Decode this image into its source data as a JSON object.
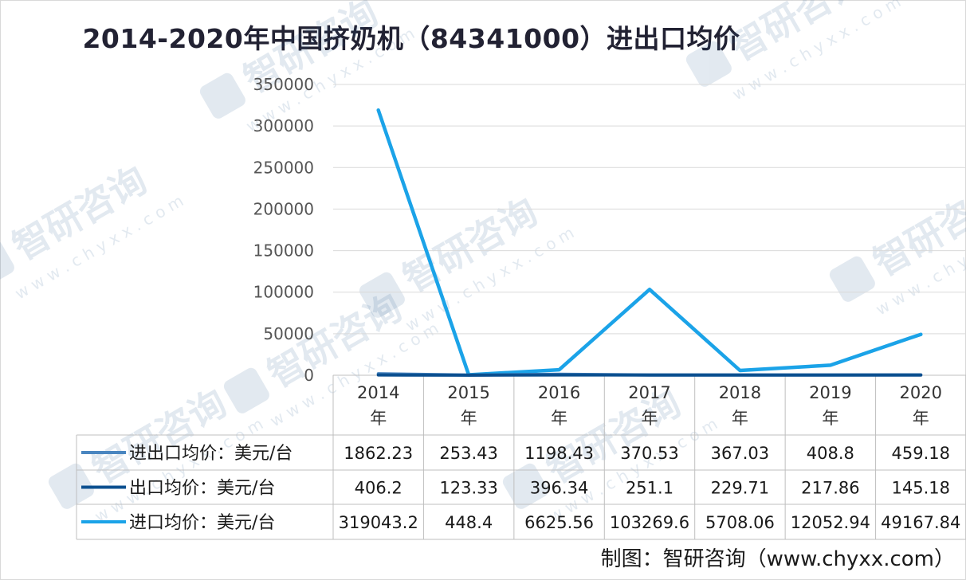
{
  "title": "2014-2020年中国挤奶机（84341000）进出口均价",
  "credit": "制图：智研咨询（www.chyxx.com）",
  "watermark": {
    "brand": "智研咨询",
    "url": "w w w . c h y x x . c o m"
  },
  "chart_data": {
    "type": "line",
    "categories": [
      "2014年",
      "2015年",
      "2016年",
      "2017年",
      "2018年",
      "2019年",
      "2020年"
    ],
    "ylim": [
      0,
      350000
    ],
    "yticks": [
      "350000",
      "300000",
      "250000",
      "200000",
      "150000",
      "100000",
      "50000",
      "0"
    ],
    "grid": true,
    "legend": "data-table",
    "series": [
      {
        "name": "进出口均价：美元/台",
        "color": "#4a86c0",
        "values": [
          1862.23,
          253.43,
          1198.43,
          370.53,
          367.03,
          408.8,
          459.18
        ],
        "labels": [
          "1862.23",
          "253.43",
          "1198.43",
          "370.53",
          "367.03",
          "408.8",
          "459.18"
        ]
      },
      {
        "name": "出口均价：美元/台",
        "color": "#0b4f8f",
        "values": [
          406.2,
          123.33,
          396.34,
          251.1,
          229.71,
          217.86,
          145.18
        ],
        "labels": [
          "406.2",
          "123.33",
          "396.34",
          "251.1",
          "229.71",
          "217.86",
          "145.18"
        ]
      },
      {
        "name": "进口均价：美元/台",
        "color": "#1ba3e8",
        "values": [
          319043.2,
          448.4,
          6625.56,
          103269.6,
          5708.06,
          12052.94,
          49167.84
        ],
        "labels": [
          "319043.2",
          "448.4",
          "6625.56",
          "103269.6",
          "5708.06",
          "12052.94",
          "49167.84"
        ]
      }
    ]
  }
}
